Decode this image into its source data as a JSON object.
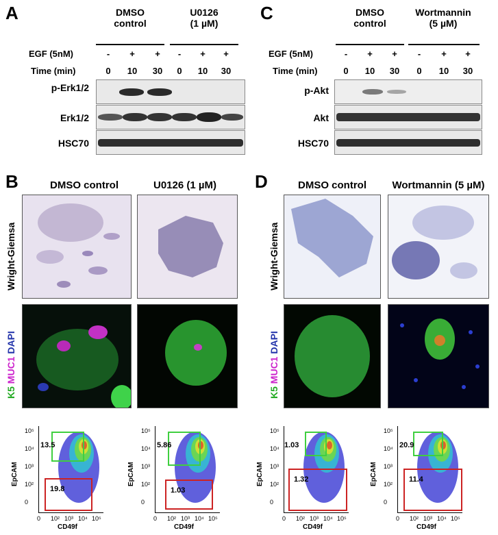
{
  "panel_a": {
    "letter": "A",
    "group1": "DMSO\ncontrol",
    "group2": "U0126\n(1 µM)",
    "egf_label": "EGF (5nM)",
    "egf": [
      "-",
      "+",
      "+",
      "-",
      "+",
      "+"
    ],
    "time_label": "Time (min)",
    "time": [
      "0",
      "10",
      "30",
      "0",
      "10",
      "30"
    ],
    "rows": [
      "p-Erk1/2",
      "Erk1/2",
      "HSC70"
    ]
  },
  "panel_c": {
    "letter": "C",
    "group1": "DMSO\ncontrol",
    "group2": "Wortmannin\n(5 µM)",
    "egf_label": "EGF (5nM)",
    "egf": [
      "-",
      "+",
      "+",
      "-",
      "+",
      "+"
    ],
    "time_label": "Time (min)",
    "time": [
      "0",
      "10",
      "30",
      "0",
      "10",
      "30"
    ],
    "rows": [
      "p-Akt",
      "Akt",
      "HSC70"
    ]
  },
  "panel_b": {
    "letter": "B",
    "col1": "DMSO control",
    "col2": "U0126 (1 µM)",
    "stain1": "Wright-Giemsa",
    "stain2_k5": "K5",
    "stain2_muc1": "MUC1",
    "stain2_dapi": "DAPI",
    "facs": [
      {
        "upper": "13.5",
        "lower": "19.8"
      },
      {
        "upper": "5.86",
        "lower": "1.03"
      }
    ]
  },
  "panel_d": {
    "letter": "D",
    "col1": "DMSO control",
    "col2": "Wortmannin (5 µM)",
    "stain1": "Wright-Giemsa",
    "stain2_k5": "K5",
    "stain2_muc1": "MUC1",
    "stain2_dapi": "DAPI",
    "facs": [
      {
        "upper": "1.03",
        "lower": "1.32"
      },
      {
        "upper": "20.9",
        "lower": "11.4"
      }
    ]
  },
  "facs_axes": {
    "ylabel": "EpCAM",
    "xlabel": "CD49f",
    "yticks": [
      "10⁵",
      "10⁴",
      "10³",
      "10²",
      "0"
    ],
    "xticks": [
      "0",
      "10²",
      "10³",
      "10⁴",
      "10⁵"
    ]
  },
  "colors": {
    "gate_upper": "#3fcf3f",
    "gate_lower": "#cc2222",
    "k5": "#22cc22",
    "muc1": "#dd22dd",
    "dapi": "#2233cc"
  }
}
